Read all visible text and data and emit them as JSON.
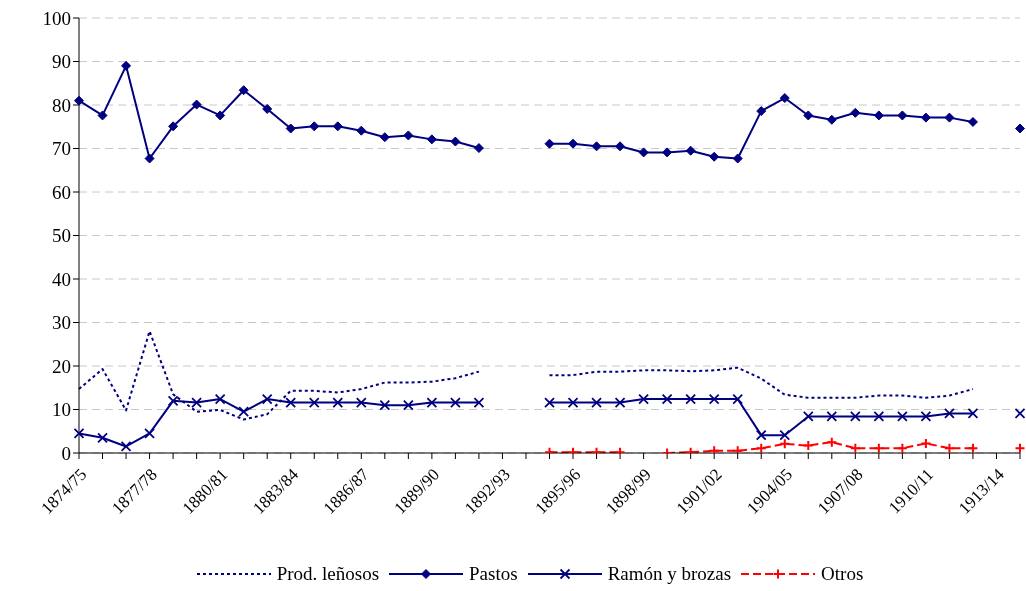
{
  "chart_data": {
    "type": "line",
    "categories": [
      "1874/75",
      null,
      null,
      "1877/78",
      null,
      null,
      "1880/81",
      null,
      null,
      "1883/84",
      null,
      null,
      "1886/87",
      null,
      null,
      "1889/90",
      null,
      null,
      "1892/93",
      null,
      null,
      "1895/96",
      null,
      null,
      "1898/99",
      null,
      null,
      "1901/02",
      null,
      null,
      "1904/05",
      null,
      null,
      "1907/08",
      null,
      null,
      "1910/11",
      null,
      null,
      "1913/14",
      null
    ],
    "series": [
      {
        "name": "Prod. leñosos",
        "color": "#000080",
        "marker": "none",
        "line_style": "dotted",
        "values": [
          14.7,
          19.3,
          9.8,
          28.0,
          13.5,
          9.5,
          9.9,
          7.7,
          8.9,
          14.3,
          14.3,
          13.9,
          14.7,
          16.2,
          16.2,
          16.4,
          17.2,
          18.7,
          null,
          null,
          17.9,
          17.9,
          18.7,
          18.7,
          19.0,
          19.0,
          18.8,
          19.0,
          19.6,
          17.1,
          13.4,
          12.7,
          12.7,
          12.7,
          13.2,
          13.2,
          12.7,
          13.2,
          14.7,
          null,
          null
        ]
      },
      {
        "name": "Pastos",
        "color": "#000080",
        "marker": "diamond",
        "line_style": "solid",
        "values": [
          81.0,
          77.6,
          89.0,
          67.7,
          75.1,
          80.1,
          77.6,
          83.4,
          79.1,
          74.6,
          75.1,
          75.1,
          74.1,
          72.6,
          73.0,
          72.1,
          71.6,
          70.1,
          null,
          null,
          71.1,
          71.1,
          70.5,
          70.5,
          69.1,
          69.1,
          69.5,
          68.1,
          67.7,
          78.6,
          81.6,
          77.6,
          76.6,
          78.2,
          77.6,
          77.6,
          77.1,
          77.1,
          76.1,
          null,
          74.6
        ]
      },
      {
        "name": "Ramón y brozas",
        "color": "#000080",
        "marker": "cross",
        "line_style": "solid",
        "values": [
          4.5,
          3.5,
          1.5,
          4.5,
          12.0,
          11.6,
          12.4,
          9.5,
          12.4,
          11.6,
          11.6,
          11.6,
          11.6,
          11.0,
          11.0,
          11.6,
          11.6,
          11.6,
          null,
          null,
          11.6,
          11.6,
          11.6,
          11.6,
          12.4,
          12.4,
          12.4,
          12.4,
          12.4,
          4.1,
          4.1,
          8.4,
          8.4,
          8.4,
          8.4,
          8.4,
          8.4,
          9.1,
          9.1,
          null,
          9.1
        ]
      },
      {
        "name": "Otros",
        "color": "#ff0000",
        "marker": "plus",
        "line_style": "dashed",
        "values": [
          null,
          null,
          null,
          null,
          null,
          null,
          null,
          null,
          null,
          null,
          null,
          null,
          null,
          null,
          null,
          null,
          null,
          null,
          null,
          null,
          0.2,
          0.2,
          0.2,
          0.2,
          null,
          0,
          0.2,
          0.5,
          0.5,
          1.1,
          2.1,
          1.7,
          2.5,
          1.1,
          1.1,
          1.1,
          2.2,
          1.1,
          1.1,
          null,
          1.1
        ]
      }
    ],
    "ylim": [
      0,
      100
    ],
    "yticks": [
      0,
      10,
      20,
      30,
      40,
      50,
      60,
      70,
      80,
      90,
      100
    ],
    "grid": "y",
    "legend": "bottom"
  }
}
